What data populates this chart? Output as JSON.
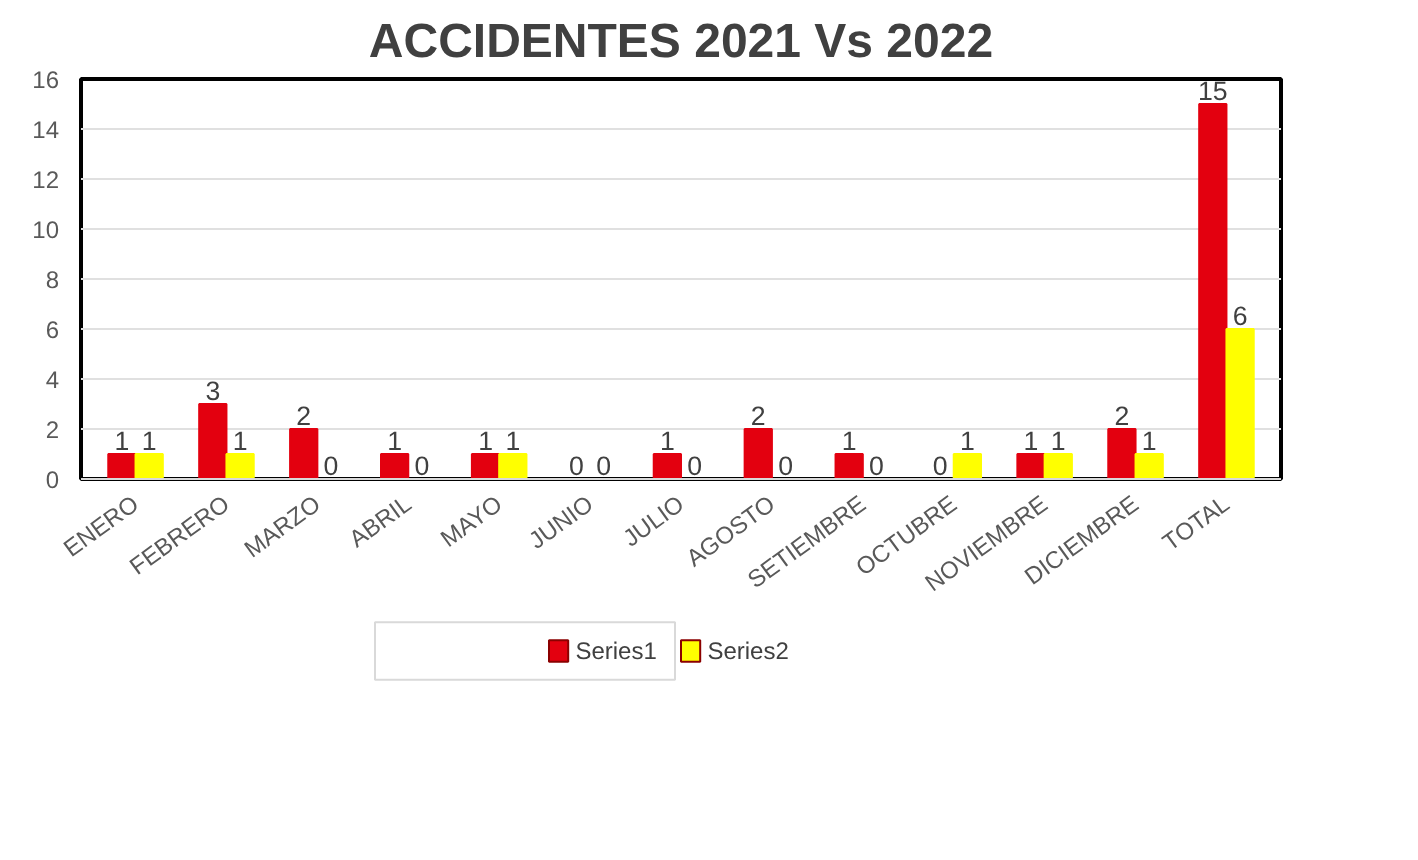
{
  "chart_data": {
    "type": "bar",
    "title": "ACCIDENTES 2021 Vs 2022",
    "categories": [
      "ENERO",
      "FEBRERO",
      "MARZO",
      "ABRIL",
      "MAYO",
      "JUNIO",
      "JULIO",
      "AGOSTO",
      "SETIEMBRE",
      "OCTUBRE",
      "NOVIEMBRE",
      "DICIEMBRE",
      "TOTAL"
    ],
    "series": [
      {
        "name": "Series1",
        "color": "#e3000f",
        "values": [
          1,
          3,
          2,
          1,
          1,
          0,
          1,
          2,
          1,
          0,
          1,
          2,
          15
        ]
      },
      {
        "name": "Series2",
        "color": "#ffff00",
        "values": [
          1,
          1,
          0,
          0,
          1,
          0,
          0,
          0,
          0,
          1,
          1,
          1,
          6
        ]
      }
    ],
    "ylim": [
      0,
      16
    ],
    "yticks": [
      0,
      2,
      4,
      6,
      8,
      10,
      12,
      14,
      16
    ],
    "grid": "y",
    "legend": "bottom",
    "data_labels": true
  }
}
